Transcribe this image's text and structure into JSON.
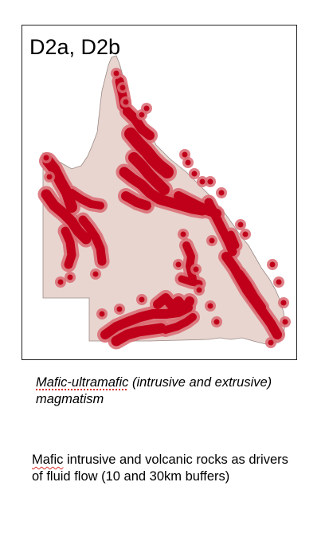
{
  "panel": {
    "title": "D2a, D2b"
  },
  "map": {
    "land_color": "#e8d5cf",
    "land_stroke": "#9a8a86",
    "buffer_outer_color": "#d96a72",
    "buffer_inner_color": "#c0001a"
  },
  "captions": {
    "heading_word": "Mafic-ultramafic",
    "heading_rest": " (intrusive and extrusive) magmatism",
    "body_word": "Mafic",
    "body_rest": " intrusive and volcanic rocks as drivers of fluid flow (10 and 30km buffers)"
  }
}
